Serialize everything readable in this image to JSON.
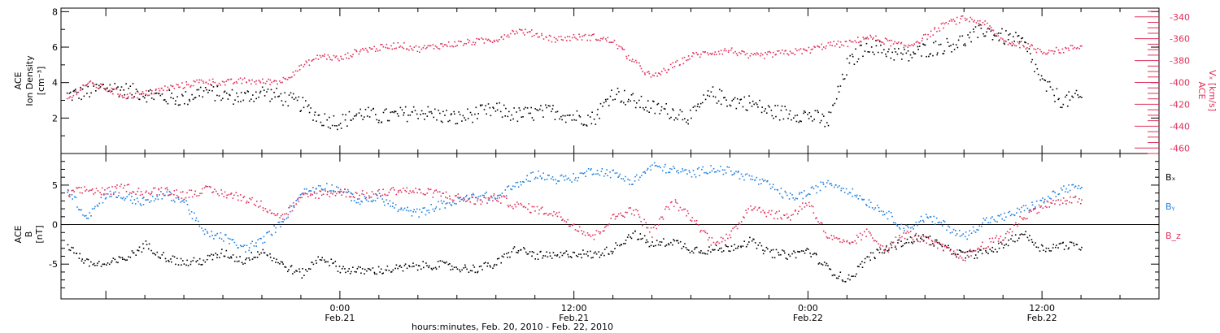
{
  "chart_data": [
    {
      "type": "scatter",
      "title": "",
      "left_axis": {
        "label_lines": [
          "ACE",
          "Ion Density",
          "[cm⁻³]"
        ],
        "ylim": [
          0,
          8.2
        ],
        "ticks": [
          "2",
          "4",
          "6",
          "8"
        ],
        "tick_values": [
          2,
          4,
          6,
          8
        ]
      },
      "right_axis": {
        "label_lines": [
          "ACE",
          "Vₓ [km/s]"
        ],
        "ylim": [
          -465,
          -332
        ],
        "ticks": [
          "-340",
          "-360",
          "-380",
          "-400",
          "-420",
          "-440",
          "-460"
        ],
        "tick_values": [
          -340,
          -360,
          -380,
          -400,
          -420,
          -440,
          -460
        ],
        "color": "#e0305a"
      },
      "series": [
        {
          "axis": "left",
          "color": "#000000",
          "x": [
            -14,
            -13,
            -12,
            -11,
            -10,
            -9,
            -8,
            -7,
            -6,
            -5,
            -4,
            -3,
            -2,
            -1,
            0,
            1,
            2,
            3,
            4,
            5,
            6,
            7,
            8,
            9,
            10,
            11,
            12,
            13,
            14,
            15,
            16,
            17,
            18,
            19,
            20,
            21,
            22,
            23,
            24,
            25,
            26,
            27,
            28,
            29,
            30,
            31,
            32,
            33,
            34,
            35,
            36,
            37,
            38
          ],
          "values": [
            3.3,
            3.5,
            3.8,
            3.6,
            3.4,
            3.2,
            3.1,
            3.6,
            3.3,
            3.2,
            3.5,
            3.2,
            2.8,
            2.0,
            1.8,
            2.3,
            2.1,
            2.2,
            2.4,
            2.2,
            2.0,
            2.3,
            2.5,
            2.2,
            2.3,
            2.4,
            2.1,
            2.0,
            3.5,
            3.0,
            2.6,
            2.4,
            2.1,
            3.4,
            3.0,
            2.9,
            2.4,
            2.3,
            2.2,
            1.8,
            5.0,
            6.2,
            5.8,
            5.5,
            5.9,
            6.1,
            6.4,
            7.0,
            6.6,
            6.3,
            4.0,
            3.0,
            3.2
          ]
        },
        {
          "axis": "right",
          "color": "#e0305a",
          "x": [
            -14,
            -13,
            -12,
            -11,
            -10,
            -9,
            -8,
            -7,
            -6,
            -5,
            -4,
            -3,
            -2,
            -1,
            0,
            1,
            2,
            3,
            4,
            5,
            6,
            7,
            8,
            9,
            10,
            11,
            12,
            13,
            14,
            15,
            16,
            17,
            18,
            19,
            20,
            21,
            22,
            23,
            24,
            25,
            26,
            27,
            28,
            29,
            30,
            31,
            32,
            33,
            34,
            35,
            36,
            37,
            38
          ],
          "values": [
            -415,
            -400,
            -405,
            -412,
            -410,
            -405,
            -402,
            -398,
            -400,
            -398,
            -399,
            -398,
            -385,
            -375,
            -378,
            -370,
            -368,
            -365,
            -369,
            -366,
            -364,
            -362,
            -360,
            -352,
            -355,
            -360,
            -358,
            -358,
            -362,
            -380,
            -395,
            -385,
            -375,
            -372,
            -370,
            -376,
            -374,
            -372,
            -370,
            -365,
            -364,
            -358,
            -362,
            -367,
            -358,
            -346,
            -341,
            -345,
            -362,
            -365,
            -371,
            -370,
            -366
          ]
        }
      ]
    },
    {
      "type": "scatter",
      "title": "",
      "left_axis": {
        "label_lines": [
          "ACE",
          "B",
          "[nT]"
        ],
        "ylim": [
          -9.4,
          9.0
        ],
        "ticks": [
          "5",
          "0",
          "-5"
        ],
        "tick_values": [
          5,
          0,
          -5
        ]
      },
      "legend": [
        "Bₓ",
        "Bᵧ",
        "B_z"
      ],
      "legend_placement": "right",
      "legend_colors": [
        "#000000",
        "#1e7fe0",
        "#e0305a"
      ],
      "series": [
        {
          "name": "Bₓ",
          "color": "#000000",
          "x": [
            -14,
            -13,
            -12,
            -11,
            -10,
            -9,
            -8,
            -7,
            -6,
            -5,
            -4,
            -3,
            -2,
            -1,
            0,
            1,
            2,
            3,
            4,
            5,
            6,
            7,
            8,
            9,
            10,
            11,
            12,
            13,
            14,
            15,
            16,
            17,
            18,
            19,
            20,
            21,
            22,
            23,
            24,
            25,
            26,
            27,
            28,
            29,
            30,
            31,
            32,
            33,
            34,
            35,
            36,
            37,
            38
          ],
          "values": [
            -2.5,
            -4.8,
            -5.0,
            -4.2,
            -2.5,
            -4.0,
            -4.8,
            -4.5,
            -3.5,
            -4.5,
            -3.2,
            -5.0,
            -6.2,
            -4.0,
            -5.5,
            -5.8,
            -5.7,
            -5.5,
            -5.2,
            -5.0,
            -5.4,
            -5.5,
            -4.9,
            -3.0,
            -3.8,
            -4.0,
            -3.5,
            -3.8,
            -3.0,
            -1.0,
            -2.5,
            -2.0,
            -3.0,
            -3.2,
            -2.8,
            -2.0,
            -3.5,
            -3.8,
            -3.2,
            -5.5,
            -7.0,
            -4.2,
            -3.0,
            -2.0,
            -1.5,
            -3.0,
            -3.8,
            -3.5,
            -2.5,
            -1.0,
            -3.0,
            -2.5,
            -2.8
          ]
        },
        {
          "name": "Bᵧ",
          "color": "#1e7fe0",
          "x": [
            -14,
            -13,
            -12,
            -11,
            -10,
            -9,
            -8,
            -7,
            -6,
            -5,
            -4,
            -3,
            -2,
            -1,
            0,
            1,
            2,
            3,
            4,
            5,
            6,
            7,
            8,
            9,
            10,
            11,
            12,
            13,
            14,
            15,
            16,
            17,
            18,
            19,
            20,
            21,
            22,
            23,
            24,
            25,
            26,
            27,
            28,
            29,
            30,
            31,
            32,
            33,
            34,
            35,
            36,
            37,
            38
          ],
          "values": [
            4.5,
            1.0,
            4.0,
            3.5,
            2.8,
            4.0,
            3.0,
            -1.0,
            -1.5,
            -3.0,
            -2.0,
            0.5,
            4.0,
            5.0,
            4.5,
            3.0,
            3.5,
            2.0,
            1.5,
            2.5,
            3.0,
            3.8,
            3.5,
            5.0,
            6.5,
            5.8,
            6.0,
            7.0,
            6.5,
            5.5,
            7.5,
            7.0,
            6.5,
            7.2,
            6.8,
            6.0,
            5.0,
            3.5,
            4.0,
            5.5,
            4.5,
            3.0,
            1.5,
            -0.5,
            1.0,
            0.0,
            -1.5,
            0.5,
            1.0,
            2.0,
            3.0,
            4.5,
            4.8
          ]
        },
        {
          "name": "B_z",
          "color": "#e0305a",
          "x": [
            -14,
            -13,
            -12,
            -11,
            -10,
            -9,
            -8,
            -7,
            -6,
            -5,
            -4,
            -3,
            -2,
            -1,
            0,
            1,
            2,
            3,
            4,
            5,
            6,
            7,
            8,
            9,
            10,
            11,
            12,
            13,
            14,
            15,
            16,
            17,
            18,
            19,
            20,
            21,
            22,
            23,
            24,
            25,
            26,
            27,
            28,
            29,
            30,
            31,
            32,
            33,
            34,
            35,
            36,
            37,
            38
          ],
          "values": [
            4.0,
            4.5,
            4.2,
            4.8,
            4.0,
            4.5,
            3.8,
            4.5,
            4.0,
            3.5,
            2.5,
            1.0,
            3.5,
            4.0,
            4.2,
            3.8,
            4.0,
            4.5,
            4.2,
            4.0,
            3.5,
            3.0,
            3.5,
            2.5,
            2.0,
            1.5,
            0.0,
            -1.5,
            1.0,
            2.0,
            -1.0,
            3.0,
            1.0,
            -2.0,
            -1.5,
            2.5,
            1.5,
            1.0,
            3.0,
            -1.5,
            -2.5,
            -1.0,
            -3.0,
            -1.0,
            -2.0,
            -3.0,
            -4.0,
            -2.5,
            -1.5,
            1.0,
            2.5,
            3.0,
            3.2
          ]
        }
      ]
    }
  ],
  "x_axis": {
    "xlim": [
      -14.3,
      42
    ],
    "tick_times": [
      "0:00",
      "12:00",
      "0:00",
      "12:00"
    ],
    "tick_dates": [
      "Feb.21",
      "Feb.21",
      "Feb.22",
      "Feb.22"
    ],
    "tick_hours": [
      0,
      12,
      24,
      36
    ],
    "xlabel": "hours:minutes, Feb. 20, 2010 - Feb. 22, 2010"
  }
}
